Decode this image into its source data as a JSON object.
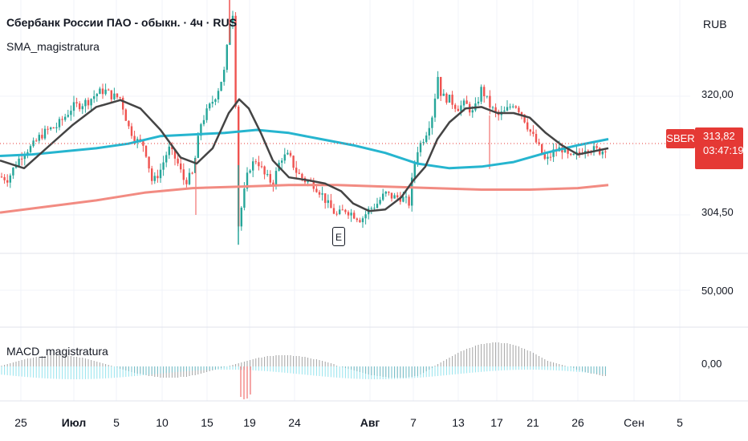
{
  "header": {
    "title": "Сбербанк России ПАО - обыкн. · 4ч · RUS",
    "indicator1": "SMA_magistratura",
    "indicator2": "MACD_magistratura",
    "currency": "RUB"
  },
  "price_axis": {
    "labels": [
      "320,00",
      "304,50"
    ],
    "volume_label": "50,000",
    "macd_label": "0,00"
  },
  "last_price": {
    "symbol": "SBER",
    "value": "313,82",
    "countdown": "03:47:19"
  },
  "earnings_marker": "E",
  "colors": {
    "up": "#26a69a",
    "down": "#ef5350",
    "sma_fast": "#444444",
    "sma_mid": "#26b5cf",
    "sma_slow": "#f28b82",
    "price_line": "#e53935",
    "macd_up": "#4dd0e1",
    "macd_down": "#ef5350"
  },
  "chart_data": {
    "type": "candlestick",
    "x_ticks": [
      {
        "label": "25",
        "bold": false
      },
      {
        "label": "Июл",
        "bold": true
      },
      {
        "label": "5",
        "bold": false
      },
      {
        "label": "10",
        "bold": false
      },
      {
        "label": "15",
        "bold": false
      },
      {
        "label": "19",
        "bold": false
      },
      {
        "label": "24",
        "bold": false
      },
      {
        "label": "Авг",
        "bold": true
      },
      {
        "label": "7",
        "bold": false
      },
      {
        "label": "13",
        "bold": false
      },
      {
        "label": "17",
        "bold": false
      },
      {
        "label": "21",
        "bold": false
      },
      {
        "label": "26",
        "bold": false
      },
      {
        "label": "Сен",
        "bold": false
      },
      {
        "label": "5",
        "bold": false
      }
    ],
    "y_ticks": [
      320.0,
      304.5
    ],
    "last_price": 313.82,
    "close_path": [
      [
        0,
        309.5
      ],
      [
        10,
        309.2
      ],
      [
        20,
        311.2
      ],
      [
        30,
        312.8
      ],
      [
        40,
        313.4
      ],
      [
        50,
        314.8
      ],
      [
        60,
        315.6
      ],
      [
        70,
        316.0
      ],
      [
        80,
        317.2
      ],
      [
        90,
        318.6
      ],
      [
        100,
        318.9
      ],
      [
        110,
        319.4
      ],
      [
        120,
        320.3
      ],
      [
        130,
        320.8
      ],
      [
        140,
        320.0
      ],
      [
        150,
        319.8
      ],
      [
        160,
        316.0
      ],
      [
        170,
        314.2
      ],
      [
        180,
        313.6
      ],
      [
        190,
        308.6
      ],
      [
        200,
        310.4
      ],
      [
        210,
        313.2
      ],
      [
        220,
        311.6
      ],
      [
        230,
        308.8
      ],
      [
        240,
        309.8
      ],
      [
        250,
        316.4
      ],
      [
        260,
        318.4
      ],
      [
        270,
        320.4
      ],
      [
        280,
        323.4
      ],
      [
        288,
        331.5
      ],
      [
        292,
        330.4
      ],
      [
        296,
        302.4
      ],
      [
        300,
        305.0
      ],
      [
        310,
        310.6
      ],
      [
        320,
        311.8
      ],
      [
        330,
        309.6
      ],
      [
        340,
        308.6
      ],
      [
        350,
        312.0
      ],
      [
        360,
        312.2
      ],
      [
        370,
        310.0
      ],
      [
        380,
        309.0
      ],
      [
        390,
        308.6
      ],
      [
        400,
        307.4
      ],
      [
        410,
        305.6
      ],
      [
        420,
        304.4
      ],
      [
        430,
        305.2
      ],
      [
        440,
        304.6
      ],
      [
        450,
        303.9
      ],
      [
        460,
        305.2
      ],
      [
        470,
        306.0
      ],
      [
        480,
        307.3
      ],
      [
        490,
        306.8
      ],
      [
        500,
        306.8
      ],
      [
        510,
        306.0
      ],
      [
        515,
        310.5
      ],
      [
        520,
        313.0
      ],
      [
        530,
        315.0
      ],
      [
        540,
        318.0
      ],
      [
        545,
        323.0
      ],
      [
        550,
        320.0
      ],
      [
        560,
        319.6
      ],
      [
        570,
        318.5
      ],
      [
        580,
        319.0
      ],
      [
        590,
        317.7
      ],
      [
        600,
        321.0
      ],
      [
        610,
        318.8
      ],
      [
        620,
        317.4
      ],
      [
        630,
        318.0
      ],
      [
        640,
        319.2
      ],
      [
        650,
        317.8
      ],
      [
        660,
        315.5
      ],
      [
        670,
        313.6
      ],
      [
        680,
        311.4
      ],
      [
        690,
        312.8
      ],
      [
        700,
        313.2
      ],
      [
        710,
        311.8
      ],
      [
        720,
        312.4
      ],
      [
        730,
        313.4
      ],
      [
        740,
        313.0
      ],
      [
        750,
        312.8
      ],
      [
        758,
        313.8
      ]
    ],
    "sma_fast": [
      [
        0,
        311.6
      ],
      [
        30,
        310.6
      ],
      [
        60,
        313.4
      ],
      [
        90,
        316.2
      ],
      [
        120,
        318.6
      ],
      [
        150,
        319.5
      ],
      [
        175,
        318.4
      ],
      [
        200,
        315.6
      ],
      [
        225,
        312.0
      ],
      [
        245,
        311.2
      ],
      [
        265,
        313.2
      ],
      [
        285,
        317.8
      ],
      [
        298,
        319.6
      ],
      [
        310,
        318.4
      ],
      [
        325,
        315.2
      ],
      [
        340,
        311.6
      ],
      [
        360,
        309.4
      ],
      [
        385,
        309.0
      ],
      [
        405,
        308.6
      ],
      [
        425,
        307.6
      ],
      [
        440,
        306.0
      ],
      [
        460,
        305.0
      ],
      [
        480,
        305.2
      ],
      [
        500,
        306.8
      ],
      [
        515,
        309.0
      ],
      [
        530,
        310.8
      ],
      [
        545,
        314.4
      ],
      [
        560,
        316.6
      ],
      [
        580,
        318.4
      ],
      [
        600,
        318.6
      ],
      [
        620,
        317.8
      ],
      [
        640,
        317.8
      ],
      [
        660,
        317.2
      ],
      [
        680,
        315.2
      ],
      [
        700,
        313.6
      ],
      [
        720,
        312.4
      ],
      [
        740,
        312.8
      ],
      [
        758,
        313.2
      ]
    ],
    "sma_mid": [
      [
        0,
        312.2
      ],
      [
        40,
        312.4
      ],
      [
        80,
        312.8
      ],
      [
        120,
        313.2
      ],
      [
        160,
        313.8
      ],
      [
        200,
        314.8
      ],
      [
        240,
        315.0
      ],
      [
        280,
        315.2
      ],
      [
        320,
        315.6
      ],
      [
        360,
        315.2
      ],
      [
        400,
        314.4
      ],
      [
        440,
        313.6
      ],
      [
        480,
        312.6
      ],
      [
        520,
        311.2
      ],
      [
        560,
        310.6
      ],
      [
        600,
        310.8
      ],
      [
        640,
        311.4
      ],
      [
        680,
        312.6
      ],
      [
        720,
        313.6
      ],
      [
        758,
        314.4
      ]
    ],
    "sma_slow": [
      [
        0,
        304.8
      ],
      [
        60,
        305.6
      ],
      [
        120,
        306.4
      ],
      [
        180,
        307.4
      ],
      [
        240,
        308.0
      ],
      [
        300,
        308.2
      ],
      [
        360,
        308.4
      ],
      [
        420,
        308.4
      ],
      [
        480,
        308.2
      ],
      [
        540,
        308.0
      ],
      [
        600,
        307.8
      ],
      [
        660,
        307.8
      ],
      [
        720,
        308.0
      ],
      [
        758,
        308.4
      ]
    ]
  }
}
